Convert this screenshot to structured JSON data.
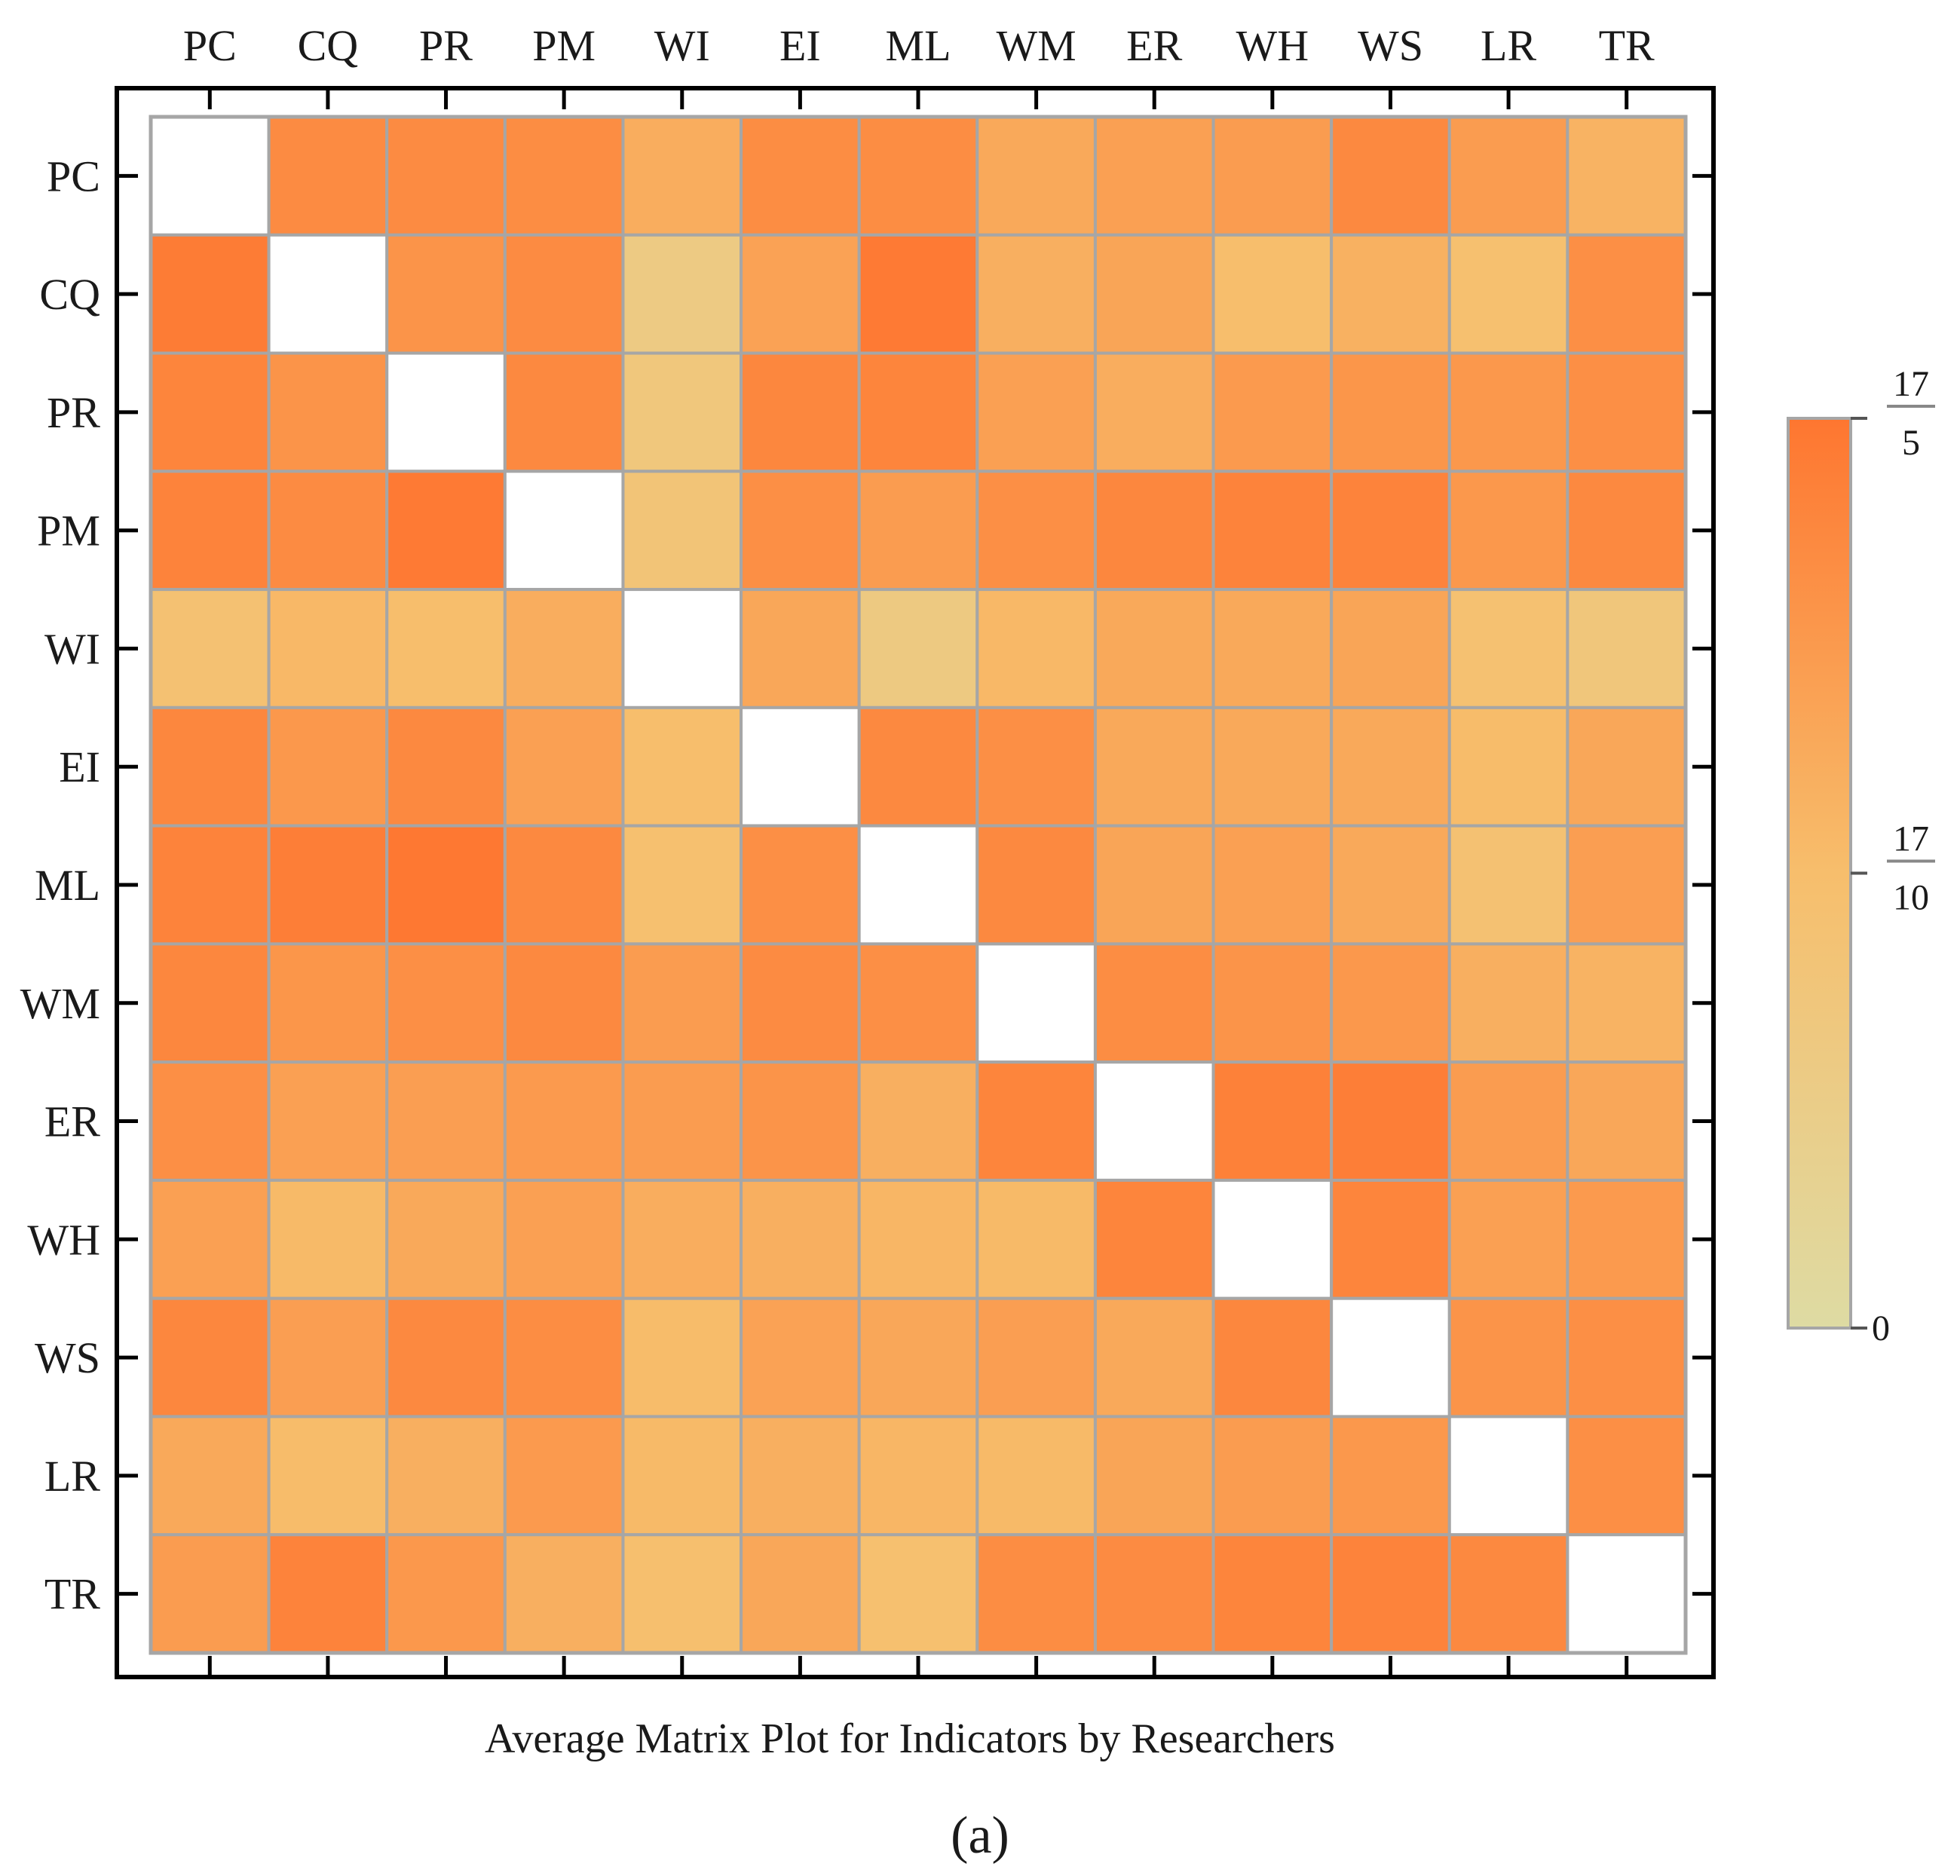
{
  "chart_data": {
    "type": "heatmap",
    "title": "",
    "xlabel": "Average Matrix Plot for Indicators by Researchers",
    "panel_label": "(a)",
    "categories": [
      "PC",
      "CQ",
      "PR",
      "PM",
      "WI",
      "EI",
      "ML",
      "WM",
      "ER",
      "WH",
      "WS",
      "LR",
      "TR"
    ],
    "row_labels": [
      "PC",
      "CQ",
      "PR",
      "PM",
      "WI",
      "EI",
      "ML",
      "WM",
      "ER",
      "WH",
      "WS",
      "LR",
      "TR"
    ],
    "value_range": [
      0,
      3.4
    ],
    "diagonal": "empty",
    "values": [
      [
        null,
        2.9,
        2.9,
        2.85,
        2.1,
        2.85,
        2.85,
        2.2,
        2.4,
        2.5,
        2.95,
        2.5,
        1.95
      ],
      [
        3.25,
        null,
        2.7,
        2.9,
        1.0,
        2.35,
        3.3,
        2.05,
        2.3,
        1.7,
        2.0,
        1.6,
        2.8
      ],
      [
        3.05,
        2.7,
        null,
        2.95,
        1.2,
        3.0,
        3.05,
        2.4,
        2.1,
        2.55,
        2.65,
        2.6,
        2.8
      ],
      [
        3.1,
        2.9,
        3.3,
        null,
        1.35,
        2.8,
        2.5,
        2.8,
        3.0,
        3.1,
        3.1,
        2.6,
        2.95
      ],
      [
        1.5,
        1.85,
        1.7,
        2.1,
        null,
        2.25,
        1.05,
        1.85,
        2.2,
        2.2,
        2.3,
        1.55,
        1.25
      ],
      [
        3.0,
        2.6,
        2.95,
        2.4,
        1.7,
        null,
        2.95,
        2.8,
        2.2,
        2.2,
        2.2,
        1.75,
        2.25
      ],
      [
        3.1,
        3.2,
        3.35,
        2.95,
        1.6,
        2.8,
        null,
        2.95,
        2.3,
        2.4,
        2.2,
        1.5,
        2.45
      ],
      [
        3.0,
        2.65,
        2.8,
        2.95,
        2.5,
        2.9,
        2.8,
        null,
        2.85,
        2.7,
        2.6,
        2.05,
        1.95
      ],
      [
        2.8,
        2.4,
        2.45,
        2.55,
        2.5,
        2.7,
        2.05,
        3.05,
        null,
        3.15,
        3.2,
        2.5,
        2.25
      ],
      [
        2.4,
        1.8,
        2.2,
        2.4,
        2.1,
        2.05,
        1.9,
        1.8,
        3.05,
        null,
        3.05,
        2.4,
        2.55
      ],
      [
        3.0,
        2.45,
        2.95,
        2.85,
        1.75,
        2.35,
        2.25,
        2.45,
        2.2,
        3.0,
        null,
        2.7,
        2.8
      ],
      [
        2.2,
        1.75,
        2.05,
        2.55,
        1.8,
        2.05,
        1.9,
        1.8,
        2.3,
        2.5,
        2.6,
        null,
        2.8
      ],
      [
        2.5,
        3.1,
        2.6,
        2.05,
        1.65,
        2.25,
        1.6,
        2.85,
        2.9,
        3.05,
        3.1,
        2.95,
        null
      ]
    ],
    "colorbar": {
      "ticks": [
        {
          "value": 0,
          "label": "0"
        },
        {
          "value": 1.7,
          "numerator": "17",
          "denominator": "10"
        },
        {
          "value": 3.4,
          "numerator": "17",
          "denominator": "5"
        }
      ]
    },
    "colors": {
      "low": "#dedba3",
      "mid": "#f7be6c",
      "high": "#fe7630",
      "cell_border": "#a6a6a6",
      "frame": "#000000"
    }
  }
}
